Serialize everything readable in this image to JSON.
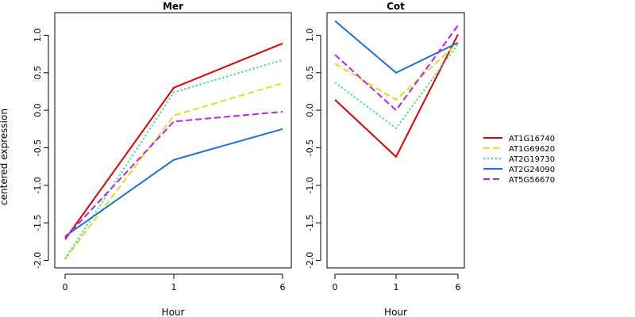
{
  "figure": {
    "ylabel": "centered expression",
    "xlabel": "Hour"
  },
  "chart_data": [
    {
      "type": "line",
      "title": "Mer",
      "xlabel": "Hour",
      "ylabel": "centered expression",
      "categories": [
        "0",
        "1",
        "6"
      ],
      "ylim": [
        -2.1,
        1.3
      ],
      "yticks": [
        -2.0,
        -1.5,
        -1.0,
        -0.5,
        0.0,
        0.5,
        1.0
      ],
      "ytick_labels": [
        "-2.0",
        "-1.5",
        "-1.0",
        "-0.5",
        "0.0",
        "0.5",
        "1.0"
      ],
      "grid": false,
      "series": [
        {
          "name": "AT1G16740",
          "values": [
            -1.72,
            0.3,
            0.89
          ]
        },
        {
          "name": "AT1G69620",
          "values": [
            -1.98,
            -0.07,
            0.36
          ]
        },
        {
          "name": "AT2G19730",
          "values": [
            -1.98,
            0.24,
            0.67
          ]
        },
        {
          "name": "AT2G24090",
          "values": [
            -1.68,
            -0.66,
            -0.25
          ]
        },
        {
          "name": "AT5G56670",
          "values": [
            -1.7,
            -0.15,
            -0.02
          ]
        }
      ]
    },
    {
      "type": "line",
      "title": "Cot",
      "xlabel": "Hour",
      "ylabel": "",
      "categories": [
        "0",
        "1",
        "6"
      ],
      "ylim": [
        -2.1,
        1.3
      ],
      "yticks": [
        -2.0,
        -1.5,
        -1.0,
        -0.5,
        0.0,
        0.5,
        1.0
      ],
      "ytick_labels": [
        "-2.0",
        "-1.5",
        "-1.0",
        "-0.5",
        "0.0",
        "0.5",
        "1.0"
      ],
      "grid": false,
      "series": [
        {
          "name": "AT1G16740",
          "values": [
            0.14,
            -0.62,
            1.01
          ]
        },
        {
          "name": "AT1G69620",
          "values": [
            0.62,
            0.14,
            0.9
          ]
        },
        {
          "name": "AT2G19730",
          "values": [
            0.37,
            -0.24,
            0.88
          ]
        },
        {
          "name": "AT2G24090",
          "values": [
            1.19,
            0.5,
            0.9
          ]
        },
        {
          "name": "AT5G56670",
          "values": [
            0.74,
            0.0,
            1.13
          ]
        }
      ]
    }
  ],
  "legend": {
    "position": "right",
    "items": [
      {
        "name": "AT1G16740",
        "color": "#DF0000",
        "dash": "solid"
      },
      {
        "name": "AT1G69620",
        "color": "#D9E21A",
        "dash": "dashed"
      },
      {
        "name": "AT2G19730",
        "color": "#22E777",
        "dash": "dotted"
      },
      {
        "name": "AT2G24090",
        "color": "#1E6FD6",
        "dash": "solid"
      },
      {
        "name": "AT5G56670",
        "color": "#BE22E7",
        "dash": "dashed"
      }
    ]
  }
}
